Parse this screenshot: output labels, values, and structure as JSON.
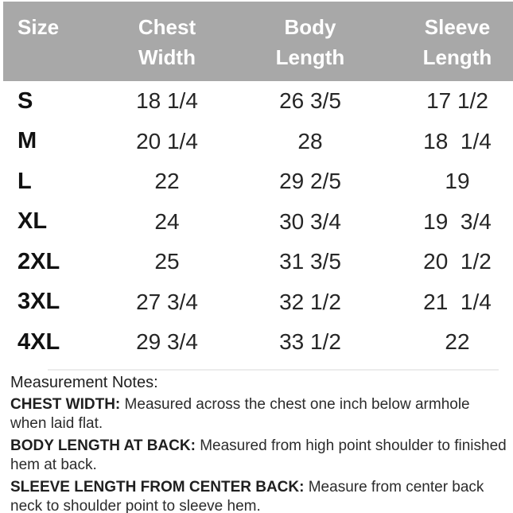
{
  "table": {
    "columns": [
      "Size",
      "Chest Width",
      "Body Length",
      "Sleeve Length"
    ],
    "rows": [
      {
        "size": "S",
        "chest": "18 1/4",
        "body": "26 3/5",
        "sleeve": "17 1/2"
      },
      {
        "size": "M",
        "chest": "20 1/4",
        "body": "28",
        "sleeve": "18  1/4"
      },
      {
        "size": "L",
        "chest": "22",
        "body": "29 2/5",
        "sleeve": "19"
      },
      {
        "size": "XL",
        "chest": "24",
        "body": "30 3/4",
        "sleeve": "19  3/4"
      },
      {
        "size": "2XL",
        "chest": "25",
        "body": "31 3/5",
        "sleeve": "20  1/2"
      },
      {
        "size": "3XL",
        "chest": "27 3/4",
        "body": "32 1/2",
        "sleeve": "21  1/4"
      },
      {
        "size": "4XL",
        "chest": "29 3/4",
        "body": "33 1/2",
        "sleeve": "22"
      }
    ]
  },
  "notes": {
    "title": "Measurement Notes:",
    "items": [
      {
        "label": "CHEST WIDTH:",
        "text": "Measured across the chest one inch below armhole when laid flat."
      },
      {
        "label": "BODY LENGTH AT BACK:",
        "text": "Measured from high point shoulder to finished hem at back."
      },
      {
        "label": "SLEEVE LENGTH FROM CENTER BACK:",
        "text": "Measure from center back neck to shoulder point to sleeve hem."
      }
    ]
  },
  "colors": {
    "header_bg": "#a8a8a8",
    "header_text": "#ffffff",
    "body_text": "#262626"
  }
}
